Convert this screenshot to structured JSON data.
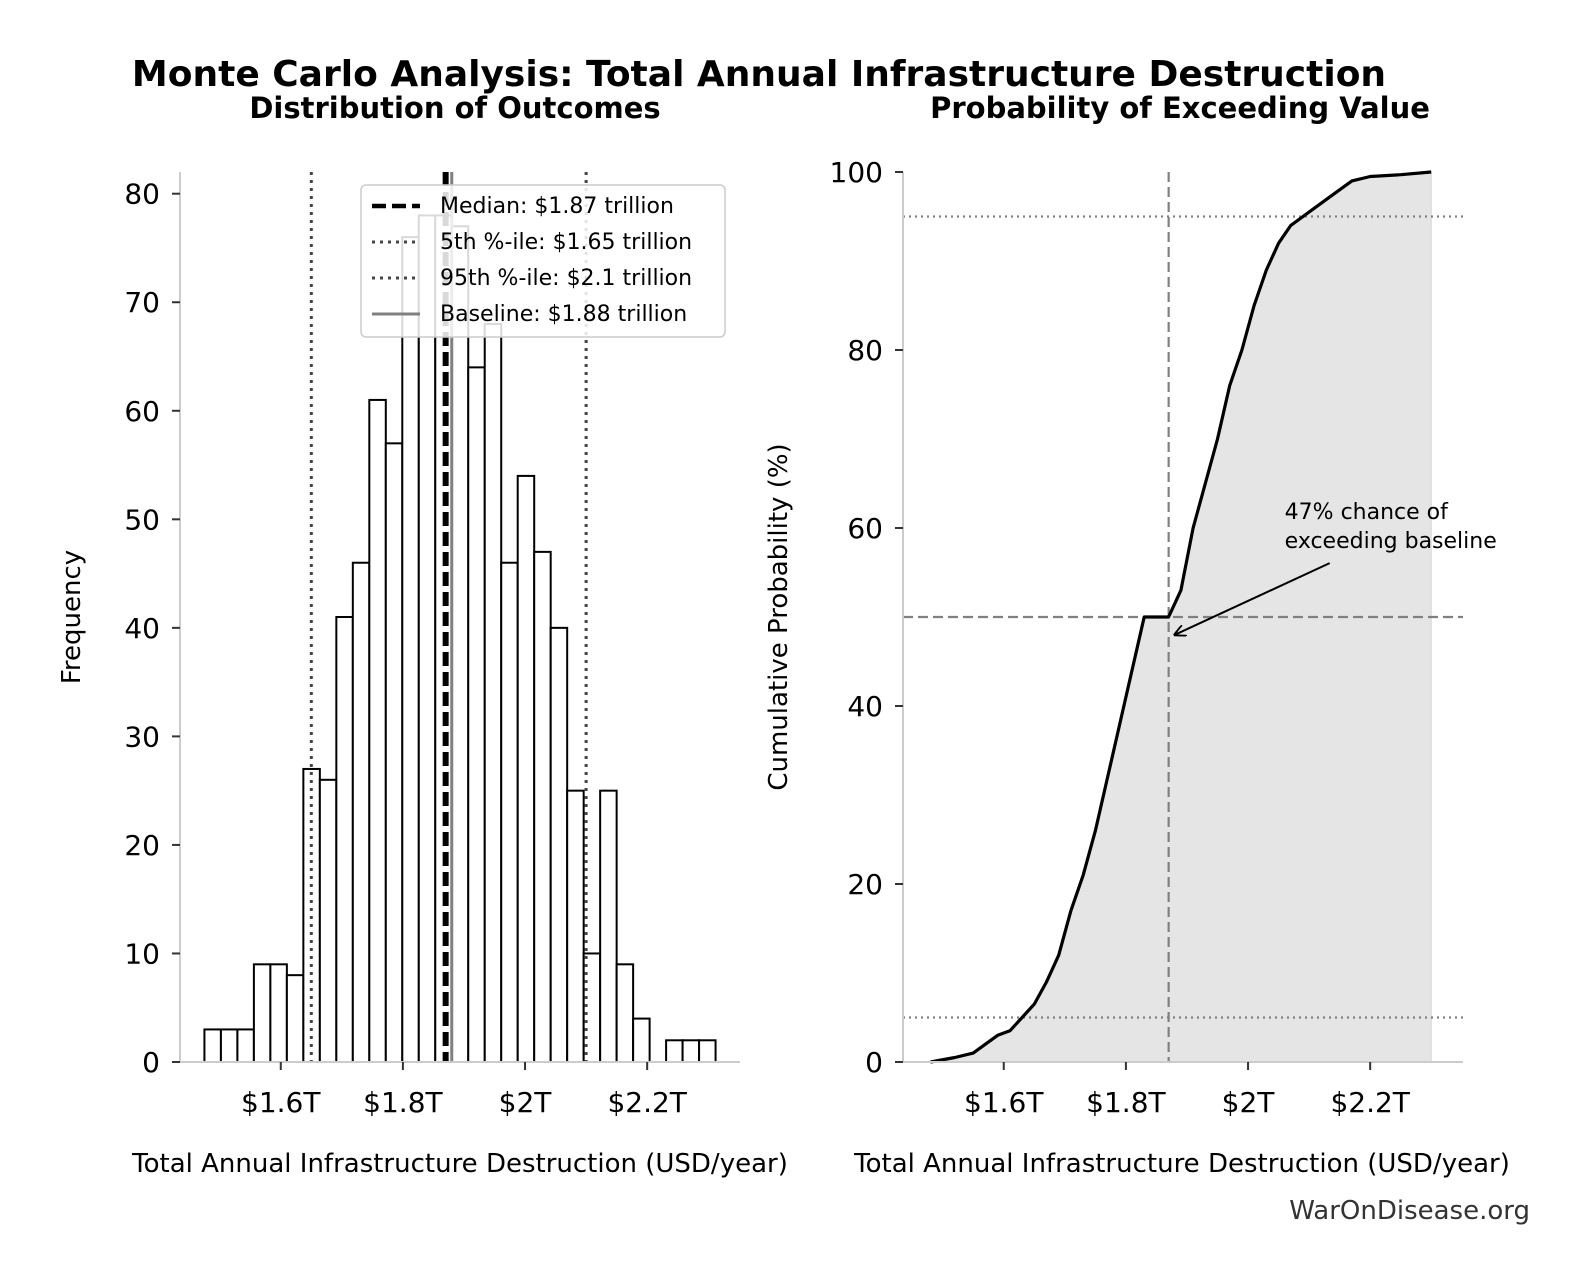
{
  "figure": {
    "suptitle": "Monte Carlo Analysis: Total Annual Infrastructure Destruction",
    "watermark": "WarOnDisease.org"
  },
  "colors": {
    "bar_fill": "#ffffff",
    "bar_edge": "#000000",
    "median_line": "#000000",
    "percentile_line": "#444444",
    "baseline_line": "#808080",
    "cdf_line": "#000000",
    "cdf_fill": "#e5e5e5",
    "ref_line": "#808080",
    "spine": "#cccccc"
  },
  "chart_data": [
    {
      "type": "bar",
      "title": "Distribution of Outcomes",
      "xlabel": "Total Annual Infrastructure Destruction (USD/year)",
      "ylabel": "Frequency",
      "xlim": [
        1.435,
        2.352
      ],
      "ylim": [
        0,
        82
      ],
      "x_ticks": [
        1.6,
        1.8,
        2.0,
        2.2
      ],
      "x_tick_labels": [
        "$1.6T",
        "$1.8T",
        "$2T",
        "$2.2T"
      ],
      "y_ticks": [
        0,
        10,
        20,
        30,
        40,
        50,
        60,
        70,
        80
      ],
      "y_tick_labels": [
        "0",
        "10",
        "20",
        "30",
        "40",
        "50",
        "60",
        "70",
        "80"
      ],
      "bin_start": 1.475,
      "bin_width": 0.027,
      "values": [
        3,
        3,
        3,
        9,
        9,
        8,
        27,
        26,
        41,
        46,
        61,
        57,
        76,
        78,
        78,
        77,
        64,
        68,
        46,
        54,
        47,
        40,
        25,
        10,
        25,
        9,
        4,
        0,
        2,
        2,
        2
      ],
      "vlines": [
        {
          "key": "median",
          "x": 1.87,
          "style": "dashed",
          "label": "Median: $1.87 trillion"
        },
        {
          "key": "p5",
          "x": 1.65,
          "style": "dotted",
          "label": "5th %-ile: $1.65 trillion"
        },
        {
          "key": "p95",
          "x": 2.1,
          "style": "dotted",
          "label": "95th %-ile: $2.1 trillion"
        },
        {
          "key": "baseline",
          "x": 1.88,
          "style": "solid",
          "label": "Baseline: $1.88 trillion"
        }
      ],
      "legend": {
        "location": "upper-right",
        "items": [
          "Median: $1.87 trillion",
          "5th %-ile: $1.65 trillion",
          "95th %-ile: $2.1 trillion",
          "Baseline: $1.88 trillion"
        ]
      },
      "grid": false
    },
    {
      "type": "area",
      "title": "Probability of Exceeding Value",
      "xlabel": "Total Annual Infrastructure Destruction (USD/year)",
      "ylabel": "Cumulative Probability (%)",
      "xlim": [
        1.435,
        2.352
      ],
      "ylim": [
        0,
        100
      ],
      "x_ticks": [
        1.6,
        1.8,
        2.0,
        2.2
      ],
      "x_tick_labels": [
        "$1.6T",
        "$1.8T",
        "$2T",
        "$2.2T"
      ],
      "y_ticks": [
        0,
        20,
        40,
        60,
        80,
        100
      ],
      "y_tick_labels": [
        "0",
        "20",
        "40",
        "60",
        "80",
        "100"
      ],
      "x": [
        1.48,
        1.52,
        1.55,
        1.57,
        1.59,
        1.61,
        1.63,
        1.65,
        1.67,
        1.69,
        1.71,
        1.73,
        1.75,
        1.77,
        1.79,
        1.81,
        1.83,
        1.85,
        1.87,
        1.89,
        1.91,
        1.93,
        1.95,
        1.97,
        1.99,
        2.01,
        2.03,
        2.05,
        2.07,
        2.09,
        2.11,
        2.13,
        2.15,
        2.17,
        2.2,
        2.25,
        2.3
      ],
      "y": [
        0,
        0.5,
        1,
        2,
        3,
        3.5,
        5,
        6.5,
        9,
        12,
        17,
        21,
        26,
        32,
        38,
        44,
        50,
        50,
        50,
        53,
        60,
        65,
        70,
        76,
        80,
        85,
        89,
        92,
        94,
        95,
        96,
        97,
        98,
        99,
        99.5,
        99.7,
        100
      ],
      "hlines": [
        {
          "y": 95,
          "style": "dotted"
        },
        {
          "y": 50,
          "style": "dashed"
        },
        {
          "y": 5,
          "style": "dotted"
        }
      ],
      "vline": {
        "x": 1.87,
        "style": "dashed"
      },
      "annotation": {
        "lines": [
          "47% chance of",
          "exceeding baseline"
        ],
        "arrow_to": [
          1.88,
          48
        ],
        "text_at": [
          2.06,
          61
        ]
      },
      "grid": false
    }
  ]
}
